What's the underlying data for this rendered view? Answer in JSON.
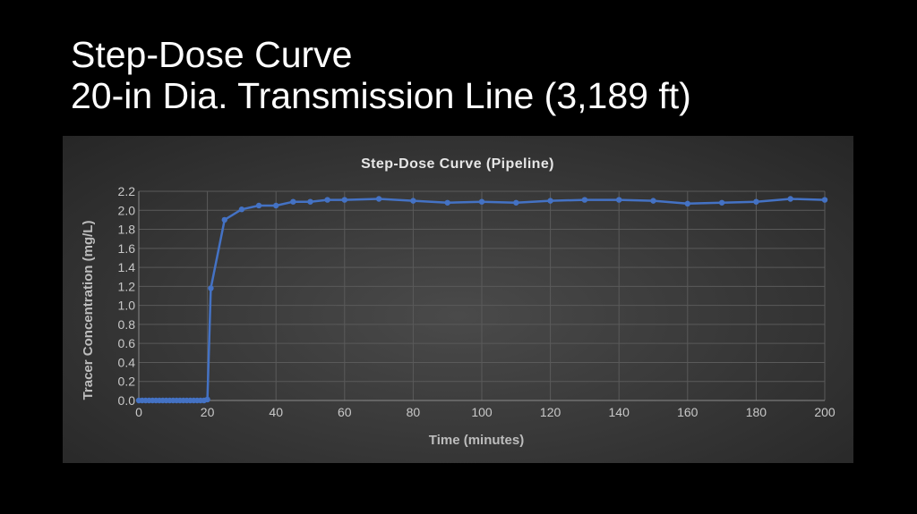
{
  "slide": {
    "title_line1": "Step-Dose Curve",
    "title_line2": "20-in Dia. Transmission Line (3,189 ft)"
  },
  "chart_data": {
    "type": "line",
    "title": "Step-Dose Curve (Pipeline)",
    "xlabel": "Time (minutes)",
    "ylabel": "Tracer Concentration (mg/L)",
    "xlim": [
      0,
      200
    ],
    "ylim": [
      0,
      2.2
    ],
    "x_ticks": [
      0,
      20,
      40,
      60,
      80,
      100,
      120,
      140,
      160,
      180,
      200
    ],
    "y_ticks": [
      0.0,
      0.2,
      0.4,
      0.6,
      0.8,
      1.0,
      1.2,
      1.4,
      1.6,
      1.8,
      2.0,
      2.2
    ],
    "grid": true,
    "legend": "none",
    "series_color": "#4472c4",
    "x": [
      0,
      1,
      2,
      3,
      4,
      5,
      6,
      7,
      8,
      9,
      10,
      11,
      12,
      13,
      14,
      15,
      16,
      17,
      18,
      19,
      20,
      21,
      25,
      30,
      35,
      40,
      45,
      50,
      55,
      60,
      70,
      80,
      90,
      100,
      110,
      120,
      130,
      140,
      150,
      160,
      170,
      180,
      190,
      200
    ],
    "y": [
      0,
      0,
      0,
      0,
      0,
      0,
      0,
      0,
      0,
      0,
      0,
      0,
      0,
      0,
      0,
      0,
      0,
      0,
      0,
      0,
      0.01,
      1.18,
      1.9,
      2.01,
      2.05,
      2.05,
      2.09,
      2.09,
      2.11,
      2.11,
      2.12,
      2.1,
      2.08,
      2.09,
      2.08,
      2.1,
      2.11,
      2.11,
      2.1,
      2.07,
      2.08,
      2.09,
      2.12,
      2.11
    ]
  }
}
